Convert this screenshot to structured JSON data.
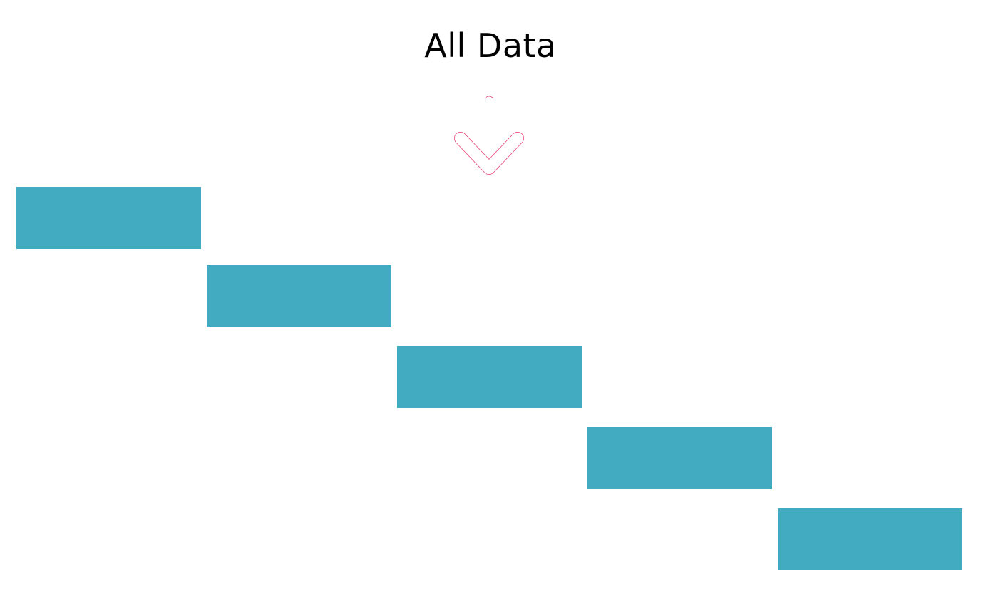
{
  "header": {
    "title": "All Data"
  },
  "icons": {
    "arrow": "chevron-down-icon"
  },
  "colors": {
    "block_fill": "#42abc1",
    "arrow_stroke": "#e8356b",
    "background": "#ffffff"
  },
  "steps": [
    {
      "label": ""
    },
    {
      "label": ""
    },
    {
      "label": ""
    },
    {
      "label": ""
    },
    {
      "label": ""
    }
  ]
}
